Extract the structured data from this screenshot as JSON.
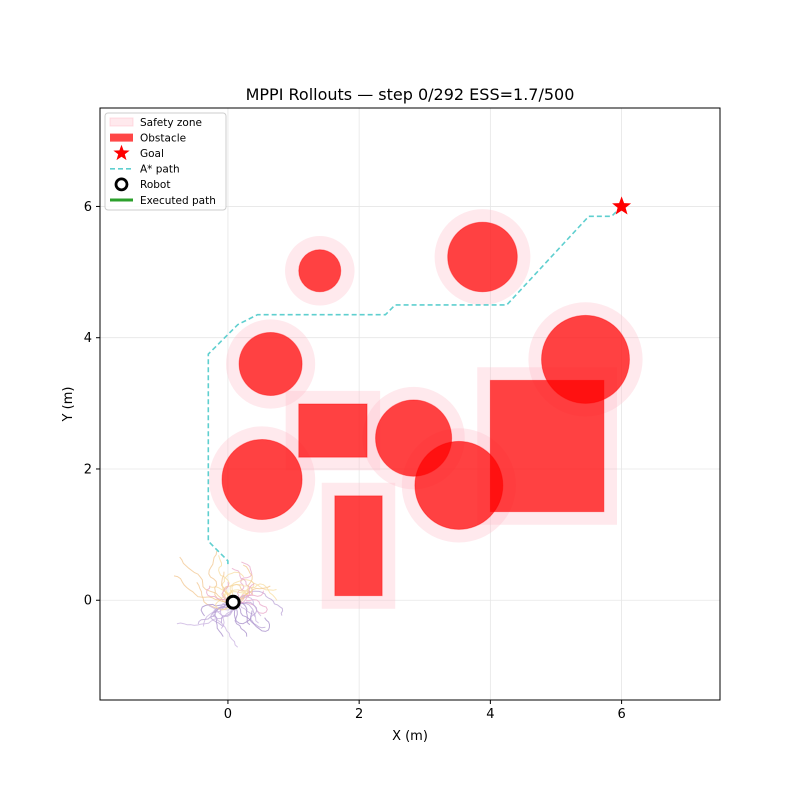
{
  "chart_data": {
    "type": "scatter",
    "title": "MPPI Rollouts — step 0/292   ESS=1.7/500",
    "xlabel": "X (m)",
    "ylabel": "Y (m)",
    "xlim": [
      -1.95,
      7.5
    ],
    "ylim": [
      -1.52,
      7.5
    ],
    "xticks": [
      0,
      2,
      4,
      6
    ],
    "yticks": [
      0,
      2,
      4,
      6
    ],
    "grid": true,
    "legend_position": "upper-left",
    "colors": {
      "obstacle": "#ff0000",
      "safety_zone": "#ffc0cb",
      "astar_path": "#5fcfcf",
      "executed_path": "#2ca02c",
      "goal": "#ff0000",
      "robot_edge": "#000000",
      "robot_face": "#ffffff"
    },
    "legend": [
      {
        "label": "Safety zone",
        "marker": "patch-light"
      },
      {
        "label": "Obstacle",
        "marker": "patch"
      },
      {
        "label": "Goal",
        "marker": "star"
      },
      {
        "label": "A* path",
        "marker": "dashed-line"
      },
      {
        "label": "Robot",
        "marker": "ring"
      },
      {
        "label": "Executed path",
        "marker": "solid-line"
      }
    ],
    "circle_obstacles": [
      {
        "cx": 1.4,
        "cy": 5.02,
        "r": 0.32,
        "safety_r": 0.53
      },
      {
        "cx": 3.88,
        "cy": 5.23,
        "r": 0.53,
        "safety_r": 0.73
      },
      {
        "cx": 0.65,
        "cy": 3.6,
        "r": 0.48,
        "safety_r": 0.68
      },
      {
        "cx": 5.45,
        "cy": 3.67,
        "r": 0.67,
        "safety_r": 0.87
      },
      {
        "cx": 2.83,
        "cy": 2.47,
        "r": 0.58,
        "safety_r": 0.78
      },
      {
        "cx": 0.52,
        "cy": 1.84,
        "r": 0.61,
        "safety_r": 0.81
      },
      {
        "cx": 3.52,
        "cy": 1.75,
        "r": 0.67,
        "safety_r": 0.87
      }
    ],
    "rect_obstacles": [
      {
        "x0": 1.08,
        "y0": 2.18,
        "x1": 2.12,
        "y1": 2.99,
        "margin": 0.2
      },
      {
        "x0": 1.63,
        "y0": 0.07,
        "x1": 2.35,
        "y1": 1.59,
        "margin": 0.2
      },
      {
        "x0": 4.0,
        "y0": 1.35,
        "x1": 5.73,
        "y1": 3.35,
        "margin": 0.2
      }
    ],
    "goal": {
      "x": 6.0,
      "y": 6.0
    },
    "robot": {
      "x": 0.08,
      "y": -0.03
    },
    "astar_path": {
      "x": [
        0.0,
        0.0,
        -0.3,
        -0.3,
        0.15,
        0.45,
        2.4,
        2.55,
        4.25,
        5.5,
        5.85,
        6.0
      ],
      "y": [
        0.55,
        0.6,
        0.9,
        3.75,
        4.2,
        4.35,
        4.35,
        4.5,
        4.5,
        5.85,
        5.85,
        6.0
      ]
    }
  }
}
